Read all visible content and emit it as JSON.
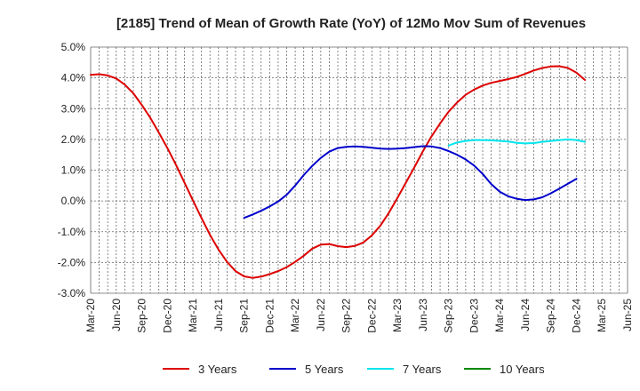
{
  "chart_data": {
    "type": "line",
    "title": "[2185]  Trend of Mean of Growth Rate (YoY) of 12Mo Mov Sum of Revenues",
    "xlabel": "",
    "ylabel": "",
    "ylim": [
      -3.0,
      5.0
    ],
    "yticks": [
      -3.0,
      -2.0,
      -1.0,
      0.0,
      1.0,
      2.0,
      3.0,
      4.0,
      5.0
    ],
    "ytick_labels": [
      "-3.0%",
      "-2.0%",
      "-1.0%",
      "0.0%",
      "1.0%",
      "2.0%",
      "3.0%",
      "4.0%",
      "5.0%"
    ],
    "x_start": "Mar-20",
    "x_months": 63,
    "xtick_labels": [
      "Mar-20",
      "Jun-20",
      "Sep-20",
      "Dec-20",
      "Mar-21",
      "Jun-21",
      "Sep-21",
      "Dec-21",
      "Mar-22",
      "Jun-22",
      "Sep-22",
      "Dec-22",
      "Mar-23",
      "Jun-23",
      "Sep-23",
      "Dec-23",
      "Mar-24",
      "Jun-24",
      "Sep-24",
      "Dec-24",
      "Mar-25",
      "Jun-25"
    ],
    "grid": true,
    "legend_position": "bottom",
    "series": [
      {
        "name": "3 Years",
        "color": "#dd0000",
        "start_index": 0,
        "values": [
          4.1,
          4.12,
          4.08,
          3.98,
          3.78,
          3.5,
          3.12,
          2.7,
          2.22,
          1.72,
          1.18,
          0.6,
          0.02,
          -0.55,
          -1.1,
          -1.58,
          -1.98,
          -2.28,
          -2.45,
          -2.5,
          -2.46,
          -2.38,
          -2.28,
          -2.15,
          -1.98,
          -1.78,
          -1.55,
          -1.42,
          -1.4,
          -1.47,
          -1.5,
          -1.46,
          -1.35,
          -1.12,
          -0.8,
          -0.38,
          0.1,
          0.6,
          1.1,
          1.62,
          2.1,
          2.52,
          2.9,
          3.2,
          3.45,
          3.62,
          3.75,
          3.84,
          3.9,
          3.96,
          4.03,
          4.13,
          4.24,
          4.32,
          4.37,
          4.38,
          4.32,
          4.17,
          3.93
        ]
      },
      {
        "name": "5 Years",
        "color": "#0000cc",
        "start_index": 18,
        "values": [
          -0.55,
          -0.44,
          -0.32,
          -0.18,
          -0.02,
          0.2,
          0.5,
          0.84,
          1.14,
          1.4,
          1.6,
          1.72,
          1.76,
          1.77,
          1.76,
          1.73,
          1.7,
          1.69,
          1.7,
          1.72,
          1.75,
          1.78,
          1.77,
          1.72,
          1.62,
          1.5,
          1.35,
          1.15,
          0.88,
          0.55,
          0.3,
          0.15,
          0.07,
          0.03,
          0.05,
          0.12,
          0.25,
          0.4,
          0.56,
          0.72
        ]
      },
      {
        "name": "7 Years",
        "color": "#00e5ee",
        "start_index": 42,
        "values": [
          1.8,
          1.9,
          1.95,
          1.98,
          1.98,
          1.97,
          1.95,
          1.93,
          1.89,
          1.87,
          1.88,
          1.92,
          1.95,
          1.98,
          2.0,
          1.98,
          1.92
        ]
      },
      {
        "name": "10 Years",
        "color": "#008800",
        "start_index": 0,
        "values": []
      }
    ]
  }
}
